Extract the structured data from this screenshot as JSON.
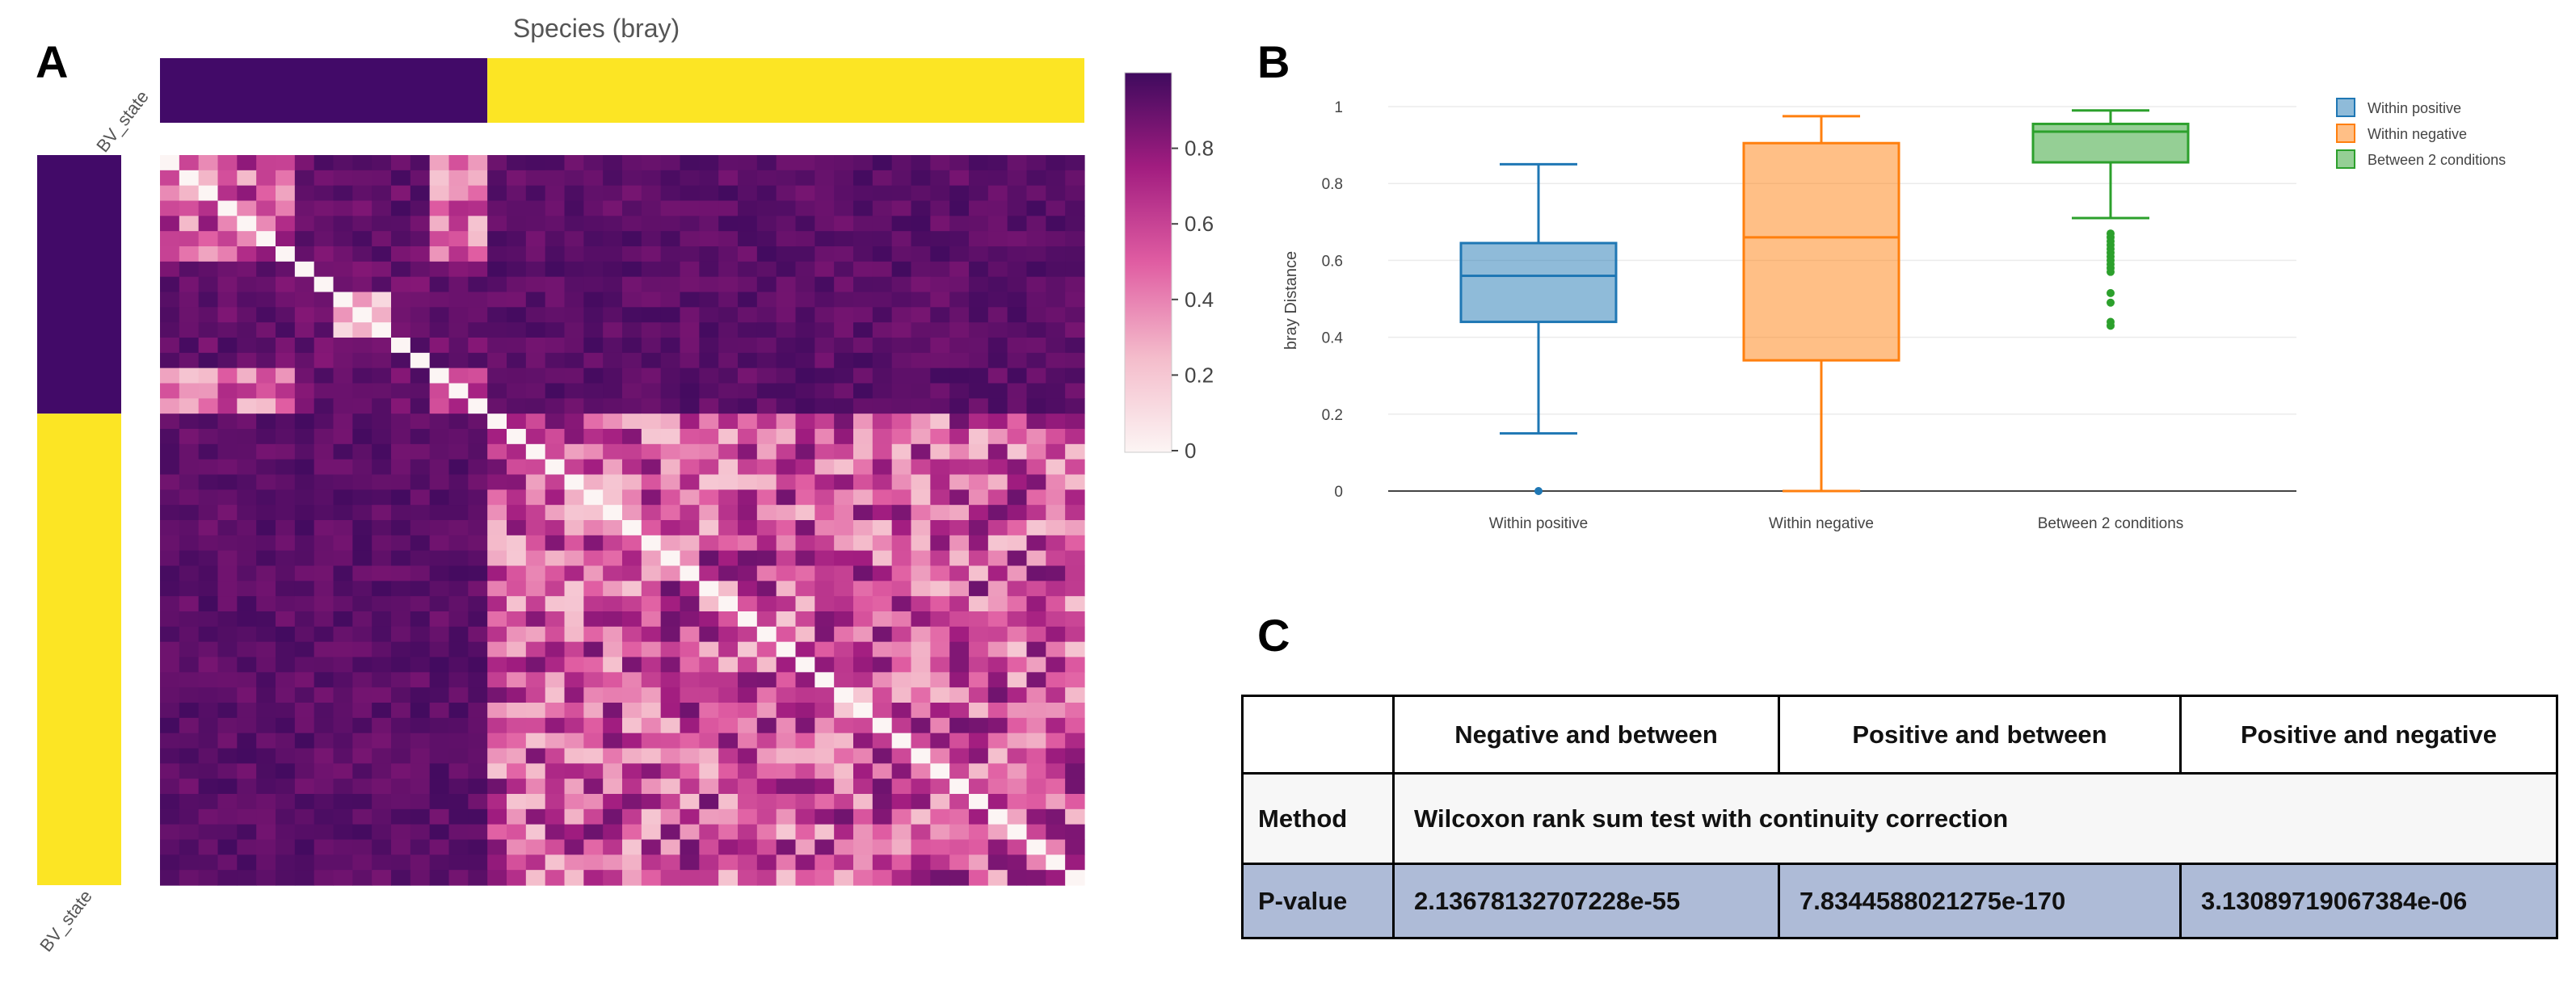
{
  "panels": {
    "a": "A",
    "b": "B",
    "c": "C"
  },
  "heatmap": {
    "title": "Species (bray)",
    "annotation_label_top": "BV_state",
    "annotation_label_bottom": "BV_state",
    "colorbar_ticks": [
      "0",
      "0.2",
      "0.4",
      "0.6",
      "0.8"
    ],
    "colors": {
      "group1": "#420a68",
      "group2": "#fce524",
      "high": "#4a0b5e",
      "mid": "#c2267e",
      "low": "#fcf0f0"
    }
  },
  "boxplot": {
    "ylabel": "bray Distance",
    "yticks": [
      "0",
      "0.2",
      "0.4",
      "0.6",
      "0.8",
      "1"
    ],
    "legend": [
      "Within positive",
      "Within negative",
      "Between 2 conditions"
    ],
    "colors": [
      "#1f77b4",
      "#ff7f0e",
      "#2ca02c"
    ]
  },
  "chart_data": [
    {
      "type": "heatmap",
      "title": "Species (bray)",
      "row_annotation": "BV_state",
      "column_annotation": "BV_state",
      "n_samples": 48,
      "group_sizes": [
        17,
        31
      ],
      "colorbar_range": [
        0,
        1
      ],
      "colorbar_ticks": [
        0,
        0.2,
        0.4,
        0.6,
        0.8
      ],
      "diagonal_value": 0,
      "mean_within_group1_subclusters": 0.45,
      "mean_within_group2": 0.55,
      "mean_between_groups": 0.93
    },
    {
      "type": "box",
      "ylabel": "bray Distance",
      "ylim": [
        0,
        1
      ],
      "yticks": [
        0,
        0.2,
        0.4,
        0.6,
        0.8,
        1
      ],
      "categories": [
        "Within positive",
        "Within negative",
        "Between 2 conditions"
      ],
      "series": [
        {
          "name": "Within positive",
          "q1": 0.44,
          "median": 0.56,
          "q3": 0.645,
          "whisker_low": 0.15,
          "whisker_high": 0.85,
          "outliers": [
            0.0
          ]
        },
        {
          "name": "Within negative",
          "q1": 0.34,
          "median": 0.66,
          "q3": 0.905,
          "whisker_low": 0.0,
          "whisker_high": 0.975,
          "outliers": []
        },
        {
          "name": "Between 2 conditions",
          "q1": 0.855,
          "median": 0.935,
          "q3": 0.955,
          "whisker_low": 0.71,
          "whisker_high": 0.99,
          "outliers": [
            0.57,
            0.58,
            0.59,
            0.6,
            0.61,
            0.62,
            0.63,
            0.64,
            0.65,
            0.66,
            0.67,
            0.515,
            0.49,
            0.44,
            0.43
          ]
        }
      ],
      "legend_position": "top-right",
      "grid": true
    },
    {
      "type": "table",
      "columns": [
        "",
        "Negative and between",
        "Positive and between",
        "Positive and negative"
      ],
      "rows": [
        [
          "Method",
          "Wilcoxon rank sum test with continuity correction"
        ],
        [
          "P-value",
          "2.13678132707228e-55",
          "7.8344588021275e-170",
          "3.13089719067384e-06"
        ]
      ]
    }
  ]
}
